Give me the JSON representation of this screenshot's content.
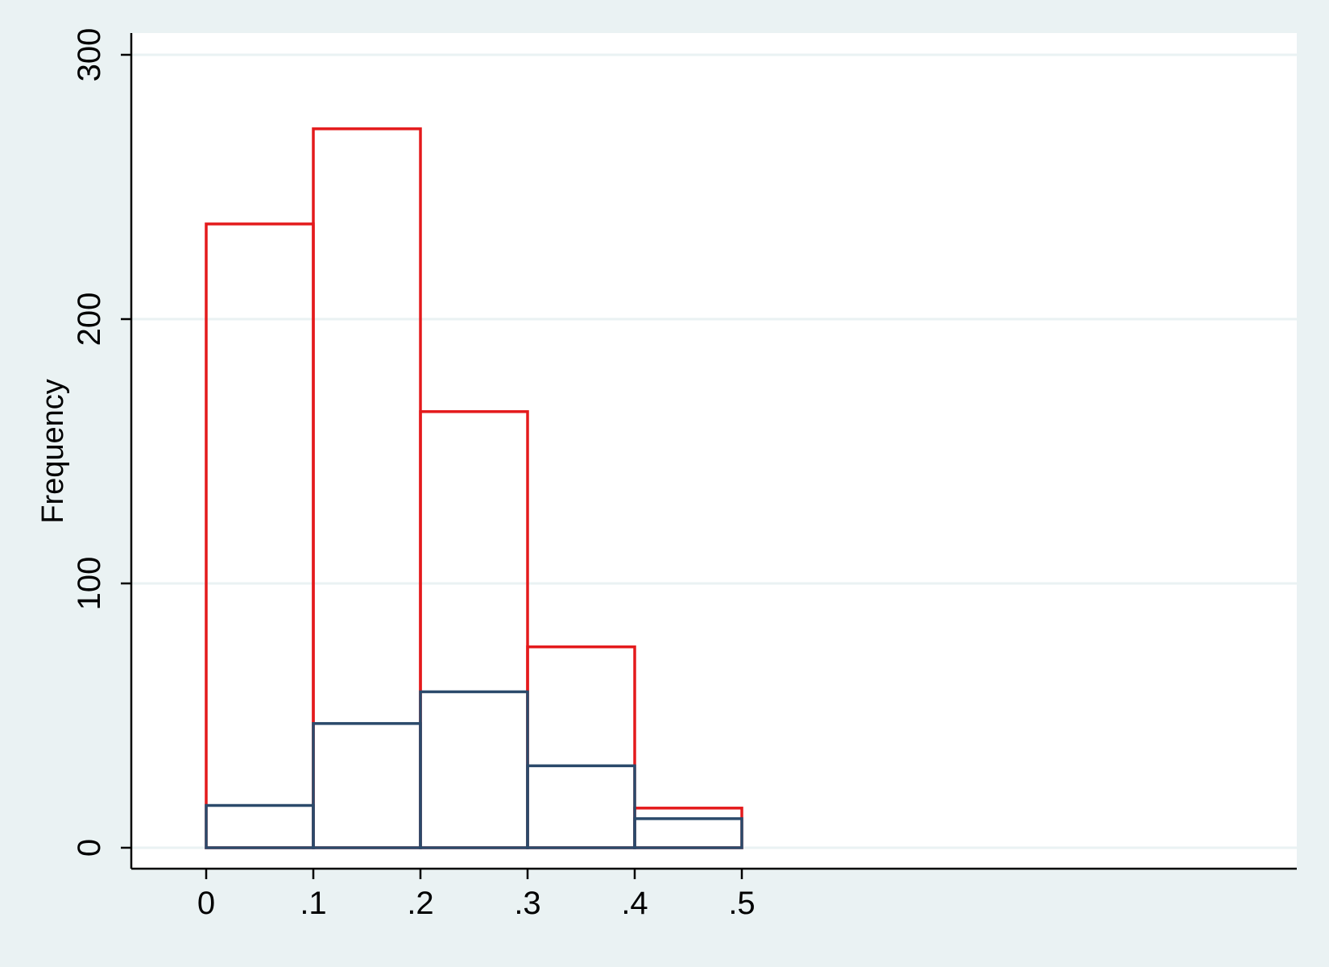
{
  "chart_data": {
    "type": "bar",
    "subtype": "overlaid-histogram",
    "title": "",
    "xlabel": "",
    "ylabel": "Frequency",
    "xlim": [
      -0.07,
      1.02
    ],
    "ylim": [
      0,
      300
    ],
    "x_ticks": [
      0,
      0.1,
      0.2,
      0.3,
      0.4,
      0.5
    ],
    "x_tick_labels": [
      "0",
      ".1",
      ".2",
      ".3",
      ".4",
      ".5"
    ],
    "y_ticks": [
      0,
      100,
      200,
      300
    ],
    "y_tick_labels": [
      "0",
      "100",
      "200",
      "300"
    ],
    "grid": true,
    "legend": "none",
    "bin_edges": [
      0,
      0.1,
      0.2,
      0.3,
      0.4,
      0.5
    ],
    "series": [
      {
        "color": "#E41A1C",
        "values": [
          236,
          272,
          165,
          76,
          15
        ]
      },
      {
        "color": "#2B4A6B",
        "values": [
          16,
          47,
          59,
          31,
          11
        ]
      }
    ],
    "colors": {
      "background": "#EAF2F3",
      "plot_background": "#FFFFFF",
      "gridline": "#EAF2F3",
      "axis": "#000000"
    }
  }
}
